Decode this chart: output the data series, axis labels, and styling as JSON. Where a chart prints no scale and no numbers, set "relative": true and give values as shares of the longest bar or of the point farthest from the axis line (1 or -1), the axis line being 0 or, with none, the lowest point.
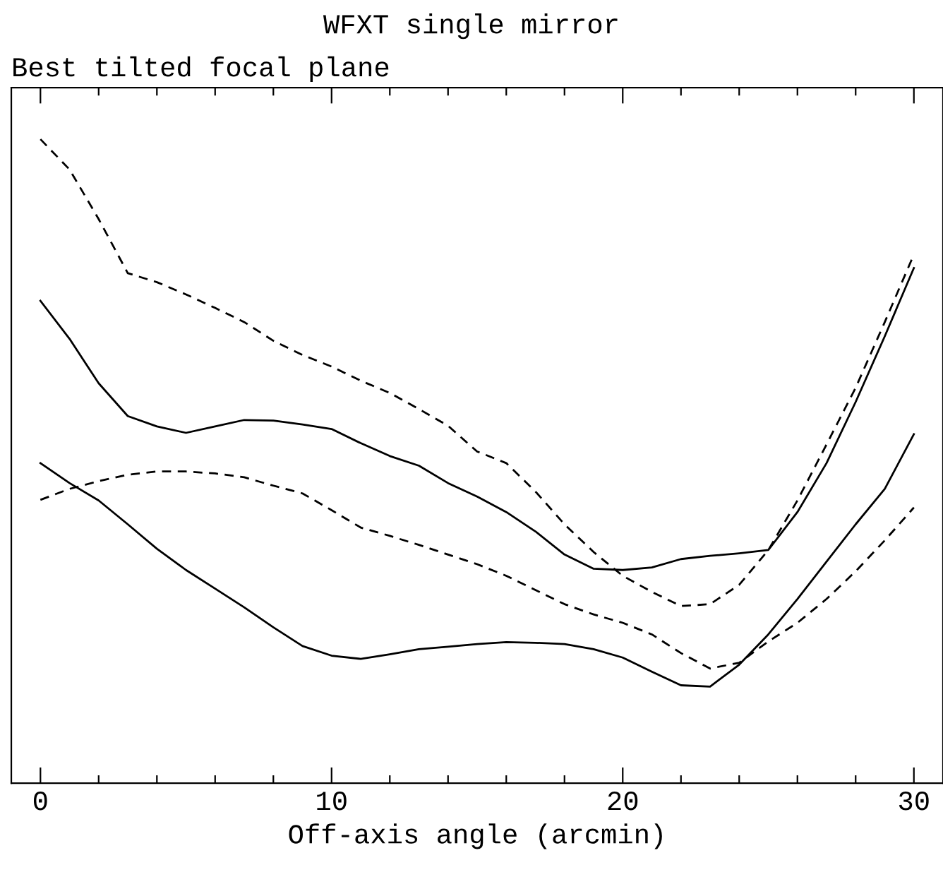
{
  "chart_data": {
    "type": "line",
    "title": "WFXT single mirror",
    "subtitle": "Best tilted focal plane",
    "xlabel": "Off-axis angle (arcmin)",
    "relative": true,
    "x": [
      0,
      1,
      2,
      3,
      4,
      5,
      6,
      7,
      8,
      9,
      10,
      11,
      12,
      13,
      14,
      15,
      16,
      17,
      18,
      19,
      20,
      21,
      22,
      23,
      24,
      25,
      26,
      27,
      28,
      29,
      30
    ],
    "xlim": [
      -1,
      31
    ],
    "xticks": [
      0,
      {
        "value": 2,
        "label": null
      },
      {
        "value": 4,
        "label": null
      },
      {
        "value": 6,
        "label": null
      },
      {
        "value": 8,
        "label": null
      },
      10,
      {
        "value": 12,
        "label": null
      },
      {
        "value": 14,
        "label": null
      },
      {
        "value": 16,
        "label": null
      },
      {
        "value": 18,
        "label": null
      },
      20,
      {
        "value": 22,
        "label": null
      },
      {
        "value": 24,
        "label": null
      },
      {
        "value": 26,
        "label": null
      },
      {
        "value": 28,
        "label": null
      },
      30
    ],
    "series": [
      {
        "color": "#000000",
        "line_style": "dashed",
        "values": [
          1.0,
          0.953,
          0.876,
          0.792,
          0.778,
          0.759,
          0.738,
          0.716,
          0.687,
          0.665,
          0.647,
          0.625,
          0.606,
          0.581,
          0.555,
          0.515,
          0.497,
          0.453,
          0.402,
          0.359,
          0.322,
          0.297,
          0.275,
          0.278,
          0.308,
          0.362,
          0.439,
          0.526,
          0.614,
          0.716,
          0.821
        ]
      },
      {
        "color": "#000000",
        "line_style": "solid",
        "values": [
          0.749,
          0.69,
          0.621,
          0.57,
          0.554,
          0.544,
          0.554,
          0.564,
          0.563,
          0.557,
          0.55,
          0.528,
          0.508,
          0.493,
          0.466,
          0.445,
          0.421,
          0.391,
          0.355,
          0.333,
          0.331,
          0.335,
          0.348,
          0.353,
          0.357,
          0.362,
          0.421,
          0.497,
          0.592,
          0.694,
          0.8
        ]
      },
      {
        "color": "#000000",
        "line_style": "dashed",
        "values": [
          0.44,
          0.457,
          0.469,
          0.479,
          0.484,
          0.484,
          0.481,
          0.475,
          0.462,
          0.45,
          0.424,
          0.397,
          0.384,
          0.37,
          0.355,
          0.34,
          0.322,
          0.3,
          0.278,
          0.262,
          0.249,
          0.231,
          0.202,
          0.178,
          0.187,
          0.22,
          0.249,
          0.286,
          0.329,
          0.377,
          0.428
        ]
      },
      {
        "color": "#000000",
        "line_style": "solid",
        "values": [
          0.497,
          0.466,
          0.439,
          0.402,
          0.364,
          0.331,
          0.302,
          0.273,
          0.242,
          0.213,
          0.198,
          0.193,
          0.2,
          0.208,
          0.212,
          0.216,
          0.219,
          0.218,
          0.216,
          0.208,
          0.195,
          0.173,
          0.152,
          0.15,
          0.184,
          0.231,
          0.286,
          0.344,
          0.402,
          0.457,
          0.542
        ]
      }
    ]
  }
}
